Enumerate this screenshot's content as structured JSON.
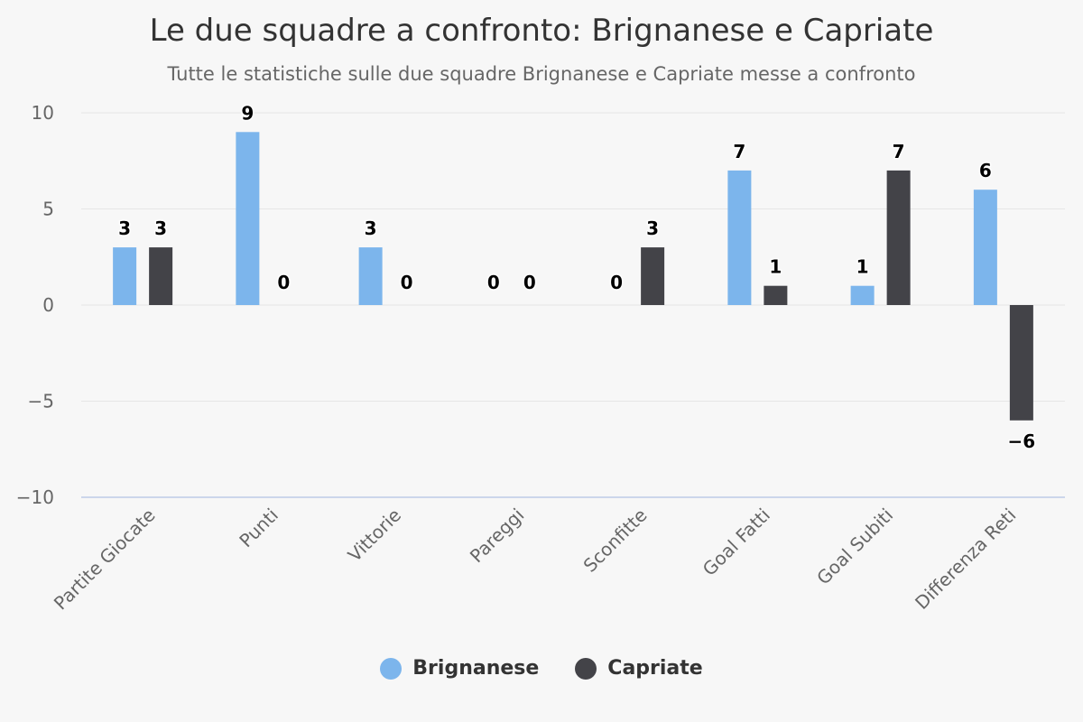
{
  "chart_data": {
    "type": "bar",
    "title": "Le due squadre a confronto: Brignanese e Capriate",
    "subtitle": "Tutte le statistiche sulle due squadre Brignanese e Capriate messe a confronto",
    "categories": [
      "Partite Giocate",
      "Punti",
      "Vittorie",
      "Pareggi",
      "Sconfitte",
      "Goal Fatti",
      "Goal Subiti",
      "Differenza Reti"
    ],
    "series": [
      {
        "name": "Brignanese",
        "color": "#7cb5ec",
        "values": [
          3,
          9,
          3,
          0,
          0,
          7,
          1,
          6
        ]
      },
      {
        "name": "Capriate",
        "color": "#434348",
        "values": [
          3,
          0,
          0,
          0,
          3,
          1,
          7,
          -6
        ]
      }
    ],
    "y_ticks": [
      "10",
      "5",
      "0",
      "−5",
      "−10"
    ],
    "ylim": [
      -10,
      10
    ],
    "grid": true,
    "legend_position": "bottom-center",
    "xlabel": "",
    "ylabel": ""
  }
}
